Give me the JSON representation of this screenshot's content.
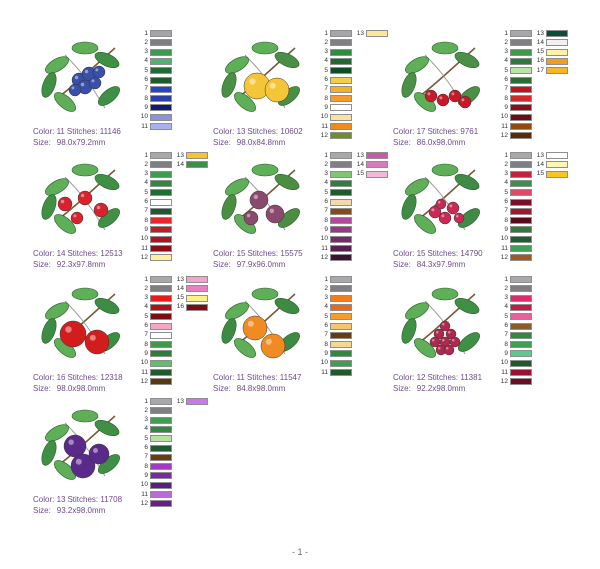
{
  "page_number": "- 1 -",
  "designs": [
    {
      "id": "blueberries",
      "icon": "blueberries-art",
      "fruit_color": "#3a4fa8",
      "leaf_color": "#3f8f44",
      "color_label": "Color: 11",
      "stitches_label": "Stitches: 11146",
      "size_label": "Size:",
      "size_value": "98.0x79.2mm",
      "colors": [
        "#a5a5a8",
        "#7d7d82",
        "#3c9a4e",
        "#4fb36b",
        "#1e6b38",
        "#1d5a2c",
        "#2944c0",
        "#2d3fa3",
        "#0f1c70",
        "#8a93d8",
        "#a9b2ef"
      ]
    },
    {
      "id": "lemons",
      "icon": "lemons-art",
      "fruit_color": "#f4c537",
      "leaf_color": "#4a8f45",
      "color_label": "Color: 13",
      "stitches_label": "Stitches: 10602",
      "size_label": "Size:",
      "size_value": "98.0x84.8mm",
      "colors": [
        "#a7a7aa",
        "#808084",
        "#2f8b3e",
        "#1f6a31",
        "#0f4d24",
        "#f4cd4a",
        "#f5b026",
        "#f59b2c",
        "#ffffff",
        "#fbe09f",
        "#f08a1f",
        "#6b8f2a",
        "#fde79c"
      ]
    },
    {
      "id": "cherries",
      "icon": "cherries-art",
      "fruit_color": "#c41a2a",
      "leaf_color": "#4a9046",
      "color_label": "Color: 17",
      "stitches_label": "Stitches: 9761",
      "size_label": "Size:",
      "size_value": "86.0x98.0mm",
      "colors": [
        "#a8a8ab",
        "#808084",
        "#3e9a4c",
        "#2d7b3c",
        "#b8e3a8",
        "#2a6e36",
        "#c4121e",
        "#d9262d",
        "#8a0d18",
        "#6e0b14",
        "#8e4a10",
        "#5c2a08",
        "#0f4a32",
        "#f0f0f0",
        "#fff1a6",
        "#f59d1a",
        "#f5b52a"
      ]
    },
    {
      "id": "strawberries",
      "icon": "strawberries-art",
      "fruit_color": "#d8232f",
      "leaf_color": "#3f8f44",
      "color_label": "Color: 14",
      "stitches_label": "Stitches: 12513",
      "size_label": "Size:",
      "size_value": "92.3x97.8mm",
      "colors": [
        "#a8a8ab",
        "#7f7f83",
        "#3f9b4d",
        "#2f8a3e",
        "#1f6d33",
        "#ffffff",
        "#1e5a2f",
        "#e8262c",
        "#c41a23",
        "#b01320",
        "#8a0d18",
        "#fff0a0",
        "#f5c52a",
        "#3c8f47"
      ]
    },
    {
      "id": "figs",
      "icon": "figs-art",
      "fruit_color": "#8a4a6e",
      "leaf_color": "#4c8d44",
      "color_label": "Color: 15",
      "stitches_label": "Stitches: 15575",
      "size_label": "Size:",
      "size_value": "97.9x96.0mm",
      "colors": [
        "#a8a8ab",
        "#808084",
        "#7ec66f",
        "#2f7d3f",
        "#1e5a2c",
        "#f5d7b0",
        "#8a4a16",
        "#b24a9c",
        "#a0338b",
        "#7a2a6a",
        "#5a1e50",
        "#3b1430",
        "#c85aa8",
        "#d77bbd",
        "#f2b8d8"
      ]
    },
    {
      "id": "raspberries",
      "icon": "raspberries-art",
      "fruit_color": "#c72b54",
      "leaf_color": "#3f8a45",
      "color_label": "Color: 15",
      "stitches_label": "Stitches: 14790",
      "size_label": "Size:",
      "size_value": "84.3x97.9mm",
      "colors": [
        "#a8a8ab",
        "#808084",
        "#c8203a",
        "#3b8f48",
        "#e04a6a",
        "#7a0e22",
        "#a8152c",
        "#5a0a1a",
        "#2f7a3c",
        "#1f5c30",
        "#3e9f55",
        "#9a5a2a",
        "#ffffff",
        "#fff6b0",
        "#f5c52a"
      ]
    },
    {
      "id": "apples",
      "icon": "apples-art",
      "fruit_color": "#d31d1d",
      "leaf_color": "#3d8c44",
      "color_label": "Color: 16",
      "stitches_label": "Stitches: 12318",
      "size_label": "Size:",
      "size_value": "98.0x98.0mm",
      "colors": [
        "#a8a8ab",
        "#808084",
        "#e81a1a",
        "#b31118",
        "#7a0d12",
        "#f3a8c0",
        "#ffffff",
        "#3c9a48",
        "#2f7d3c",
        "#5fbf6a",
        "#1e5a2c",
        "#5a3a08",
        "#f5a2cf",
        "#e87fc0",
        "#fff08a",
        "#7a0c12"
      ]
    },
    {
      "id": "oranges",
      "icon": "oranges-art",
      "fruit_color": "#f08a23",
      "leaf_color": "#3d8a42",
      "color_label": "Color: 11",
      "stitches_label": "Stitches: 11547",
      "size_label": "Size:",
      "size_value": "84.8x98.0mm",
      "colors": [
        "#a8a8ab",
        "#808084",
        "#f27d1a",
        "#e8691a",
        "#f59d2a",
        "#f5c56a",
        "#6a3a12",
        "#f5d890",
        "#2f8a3e",
        "#3e9f50",
        "#1e5a2c"
      ]
    },
    {
      "id": "grapes",
      "icon": "grapes-art",
      "fruit_color": "#b0284e",
      "leaf_color": "#3f8f44",
      "color_label": "Color: 12",
      "stitches_label": "Stitches: 11381",
      "size_label": "Size:",
      "size_value": "92.2x98.0mm",
      "colors": [
        "#a8a8ab",
        "#808084",
        "#e02a6a",
        "#c41a4a",
        "#e8609a",
        "#8a5a2a",
        "#2f8a3e",
        "#3e9f50",
        "#60c88a",
        "#1e5a2c",
        "#9a1030",
        "#6e0b22"
      ]
    },
    {
      "id": "plums",
      "icon": "plums-art",
      "fruit_color": "#5a2a8a",
      "leaf_color": "#3f8f44",
      "color_label": "Color: 13",
      "stitches_label": "Stitches: 11708",
      "size_label": "Size:",
      "size_value": "93.2x98.0mm",
      "colors": [
        "#a8a8ab",
        "#808084",
        "#3e9f50",
        "#2f8a3e",
        "#b8e0a0",
        "#1e5a2c",
        "#6a3a12",
        "#a03cc0",
        "#7a2aa0",
        "#5a1e80",
        "#b86ad8",
        "#6a1e8a",
        "#c878e8"
      ]
    }
  ]
}
